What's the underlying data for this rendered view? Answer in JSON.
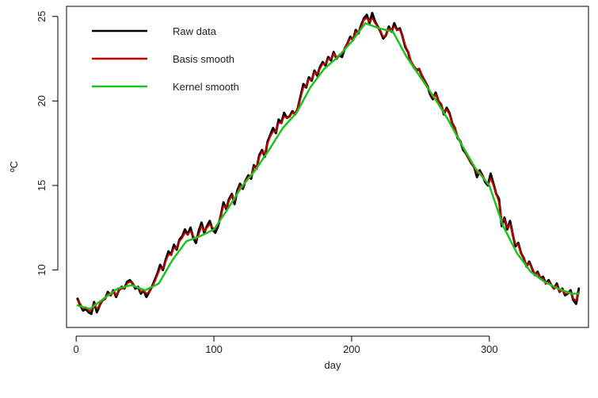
{
  "chart_data": {
    "type": "line",
    "xlabel": "day",
    "ylabel": "ºC",
    "xlim": [
      -7,
      372
    ],
    "ylim": [
      6.6,
      25.6
    ],
    "xticks": [
      0,
      100,
      200,
      300
    ],
    "yticks": [
      10,
      15,
      20,
      25
    ],
    "legend_position": "top-left",
    "series": [
      {
        "name": "Raw data",
        "color": "#000000",
        "x": [
          1,
          3,
          5,
          7,
          9,
          11,
          13,
          15,
          17,
          19,
          21,
          23,
          25,
          27,
          29,
          31,
          33,
          35,
          37,
          39,
          41,
          43,
          45,
          47,
          49,
          51,
          53,
          55,
          57,
          59,
          61,
          63,
          65,
          67,
          69,
          71,
          73,
          75,
          77,
          79,
          81,
          83,
          85,
          87,
          89,
          91,
          93,
          95,
          97,
          99,
          101,
          103,
          105,
          107,
          109,
          111,
          113,
          115,
          117,
          119,
          121,
          123,
          125,
          127,
          129,
          131,
          133,
          135,
          137,
          139,
          141,
          143,
          145,
          147,
          149,
          151,
          153,
          155,
          157,
          159,
          161,
          163,
          165,
          167,
          169,
          171,
          173,
          175,
          177,
          179,
          181,
          183,
          185,
          187,
          189,
          191,
          193,
          195,
          197,
          199,
          201,
          203,
          205,
          207,
          209,
          211,
          213,
          215,
          217,
          219,
          221,
          223,
          225,
          227,
          229,
          231,
          233,
          235,
          237,
          239,
          241,
          243,
          245,
          247,
          249,
          251,
          253,
          255,
          257,
          259,
          261,
          263,
          265,
          267,
          269,
          271,
          273,
          275,
          277,
          279,
          281,
          283,
          285,
          287,
          289,
          291,
          293,
          295,
          297,
          299,
          301,
          303,
          305,
          307,
          309,
          311,
          313,
          315,
          317,
          319,
          321,
          323,
          325,
          327,
          329,
          331,
          333,
          335,
          337,
          339,
          341,
          343,
          345,
          347,
          349,
          351,
          353,
          355,
          357,
          359,
          361,
          363,
          365
        ],
        "values": [
          8.3,
          7.9,
          7.6,
          7.7,
          7.5,
          7.4,
          8.1,
          7.5,
          7.9,
          8.2,
          8.3,
          8.7,
          8.5,
          8.8,
          8.4,
          8.8,
          9.0,
          8.9,
          9.3,
          9.4,
          9.2,
          8.9,
          9.0,
          8.6,
          8.8,
          8.4,
          8.7,
          9.0,
          9.4,
          9.8,
          10.3,
          10.0,
          10.6,
          11.1,
          10.9,
          11.5,
          11.2,
          11.8,
          12.0,
          12.4,
          12.1,
          12.5,
          11.9,
          11.6,
          12.3,
          12.8,
          12.2,
          12.6,
          12.9,
          12.4,
          12.2,
          12.6,
          13.2,
          14.0,
          13.6,
          14.2,
          14.5,
          13.9,
          14.7,
          15.1,
          14.8,
          15.3,
          15.6,
          15.4,
          16.2,
          16.0,
          16.8,
          17.1,
          16.7,
          17.6,
          18.0,
          18.4,
          18.1,
          18.9,
          18.7,
          19.3,
          19.0,
          19.1,
          19.4,
          19.2,
          19.6,
          20.3,
          21.0,
          20.8,
          21.4,
          21.2,
          21.8,
          21.5,
          22.0,
          22.3,
          22.1,
          22.6,
          22.4,
          22.9,
          22.5,
          22.7,
          22.6,
          23.1,
          23.4,
          23.8,
          23.6,
          24.2,
          24.0,
          24.5,
          24.9,
          25.1,
          24.6,
          25.2,
          24.7,
          24.4,
          24.1,
          23.7,
          23.9,
          24.4,
          24.1,
          24.6,
          24.2,
          24.3,
          23.8,
          23.2,
          22.9,
          22.3,
          22.0,
          21.8,
          21.9,
          21.5,
          21.2,
          20.9,
          20.4,
          20.1,
          20.5,
          20.0,
          19.8,
          19.2,
          19.6,
          19.3,
          18.7,
          18.4,
          17.8,
          17.6,
          17.1,
          16.9,
          16.6,
          16.3,
          16.1,
          15.5,
          15.9,
          15.6,
          15.2,
          15.0,
          15.7,
          15.1,
          14.5,
          14.2,
          12.6,
          13.1,
          12.4,
          12.9,
          12.1,
          11.4,
          11.6,
          11.0,
          10.7,
          10.2,
          10.5,
          10.1,
          9.7,
          9.9,
          9.5,
          9.6,
          9.2,
          9.4,
          9.1,
          8.9,
          9.2,
          8.7,
          8.9,
          8.5,
          8.6,
          8.8,
          8.2,
          8.0,
          8.9
        ]
      },
      {
        "name": "Basis smooth",
        "color": "#cc0000",
        "x": [
          1,
          3,
          5,
          7,
          9,
          11,
          13,
          15,
          17,
          19,
          21,
          23,
          25,
          27,
          29,
          31,
          33,
          35,
          37,
          39,
          41,
          43,
          45,
          47,
          49,
          51,
          53,
          55,
          57,
          59,
          61,
          63,
          65,
          67,
          69,
          71,
          73,
          75,
          77,
          79,
          81,
          83,
          85,
          87,
          89,
          91,
          93,
          95,
          97,
          99,
          101,
          103,
          105,
          107,
          109,
          111,
          113,
          115,
          117,
          119,
          121,
          123,
          125,
          127,
          129,
          131,
          133,
          135,
          137,
          139,
          141,
          143,
          145,
          147,
          149,
          151,
          153,
          155,
          157,
          159,
          161,
          163,
          165,
          167,
          169,
          171,
          173,
          175,
          177,
          179,
          181,
          183,
          185,
          187,
          189,
          191,
          193,
          195,
          197,
          199,
          201,
          203,
          205,
          207,
          209,
          211,
          213,
          215,
          217,
          219,
          221,
          223,
          225,
          227,
          229,
          231,
          233,
          235,
          237,
          239,
          241,
          243,
          245,
          247,
          249,
          251,
          253,
          255,
          257,
          259,
          261,
          263,
          265,
          267,
          269,
          271,
          273,
          275,
          277,
          279,
          281,
          283,
          285,
          287,
          289,
          291,
          293,
          295,
          297,
          299,
          301,
          303,
          305,
          307,
          309,
          311,
          313,
          315,
          317,
          319,
          321,
          323,
          325,
          327,
          329,
          331,
          333,
          335,
          337,
          339,
          341,
          343,
          345,
          347,
          349,
          351,
          353,
          355,
          357,
          359,
          361,
          363,
          365
        ],
        "values": [
          8.2,
          8.0,
          7.7,
          7.8,
          7.6,
          7.6,
          8.0,
          7.7,
          7.9,
          8.2,
          8.3,
          8.6,
          8.5,
          8.7,
          8.5,
          8.8,
          8.9,
          8.9,
          9.2,
          9.3,
          9.2,
          9.0,
          9.0,
          8.7,
          8.8,
          8.6,
          8.7,
          9.0,
          9.3,
          9.7,
          10.1,
          10.1,
          10.5,
          10.9,
          10.9,
          11.3,
          11.3,
          11.7,
          11.9,
          12.2,
          12.1,
          12.3,
          12.0,
          11.8,
          12.1,
          12.6,
          12.3,
          12.5,
          12.7,
          12.5,
          12.4,
          12.7,
          13.2,
          13.8,
          13.7,
          14.1,
          14.4,
          14.1,
          14.6,
          15.0,
          14.9,
          15.3,
          15.5,
          15.5,
          16.1,
          16.1,
          16.7,
          17.0,
          16.9,
          17.5,
          17.9,
          18.2,
          18.2,
          18.7,
          18.7,
          19.1,
          19.0,
          19.1,
          19.3,
          19.3,
          19.6,
          20.2,
          20.8,
          20.9,
          21.3,
          21.3,
          21.7,
          21.6,
          21.9,
          22.2,
          22.2,
          22.5,
          22.5,
          22.8,
          22.6,
          22.7,
          22.8,
          23.1,
          23.4,
          23.7,
          23.7,
          24.1,
          24.1,
          24.4,
          24.8,
          24.9,
          24.7,
          24.9,
          24.6,
          24.4,
          24.1,
          23.8,
          23.9,
          24.3,
          24.2,
          24.4,
          24.2,
          24.2,
          23.8,
          23.3,
          22.9,
          22.4,
          22.1,
          21.9,
          21.9,
          21.5,
          21.2,
          20.9,
          20.5,
          20.2,
          20.4,
          20.0,
          19.8,
          19.3,
          19.5,
          19.2,
          18.7,
          18.4,
          17.9,
          17.6,
          17.2,
          16.9,
          16.6,
          16.3,
          16.1,
          15.7,
          15.8,
          15.6,
          15.3,
          15.1,
          15.4,
          15.0,
          14.5,
          14.0,
          12.9,
          13.0,
          12.5,
          12.7,
          12.1,
          11.5,
          11.5,
          11.0,
          10.7,
          10.3,
          10.4,
          10.1,
          9.8,
          9.8,
          9.5,
          9.5,
          9.2,
          9.3,
          9.1,
          8.9,
          9.1,
          8.7,
          8.8,
          8.6,
          8.6,
          8.7,
          8.3,
          8.2,
          8.7
        ]
      },
      {
        "name": "Kernel smooth",
        "color": "#1fc11f",
        "x": [
          1,
          10,
          20,
          30,
          40,
          50,
          60,
          70,
          80,
          90,
          100,
          110,
          120,
          130,
          140,
          150,
          160,
          170,
          180,
          190,
          200,
          210,
          220,
          230,
          240,
          250,
          260,
          270,
          280,
          290,
          300,
          310,
          320,
          330,
          340,
          350,
          360,
          365
        ],
        "values": [
          7.9,
          7.7,
          8.3,
          8.9,
          9.1,
          8.8,
          9.2,
          10.6,
          11.7,
          12.0,
          12.4,
          13.6,
          14.9,
          15.9,
          17.1,
          18.4,
          19.3,
          20.8,
          21.9,
          22.6,
          23.5,
          24.6,
          24.3,
          24.1,
          22.6,
          21.4,
          20.2,
          18.9,
          17.4,
          16.0,
          15.0,
          12.6,
          11.0,
          9.9,
          9.3,
          8.9,
          8.6,
          8.6
        ]
      }
    ]
  }
}
